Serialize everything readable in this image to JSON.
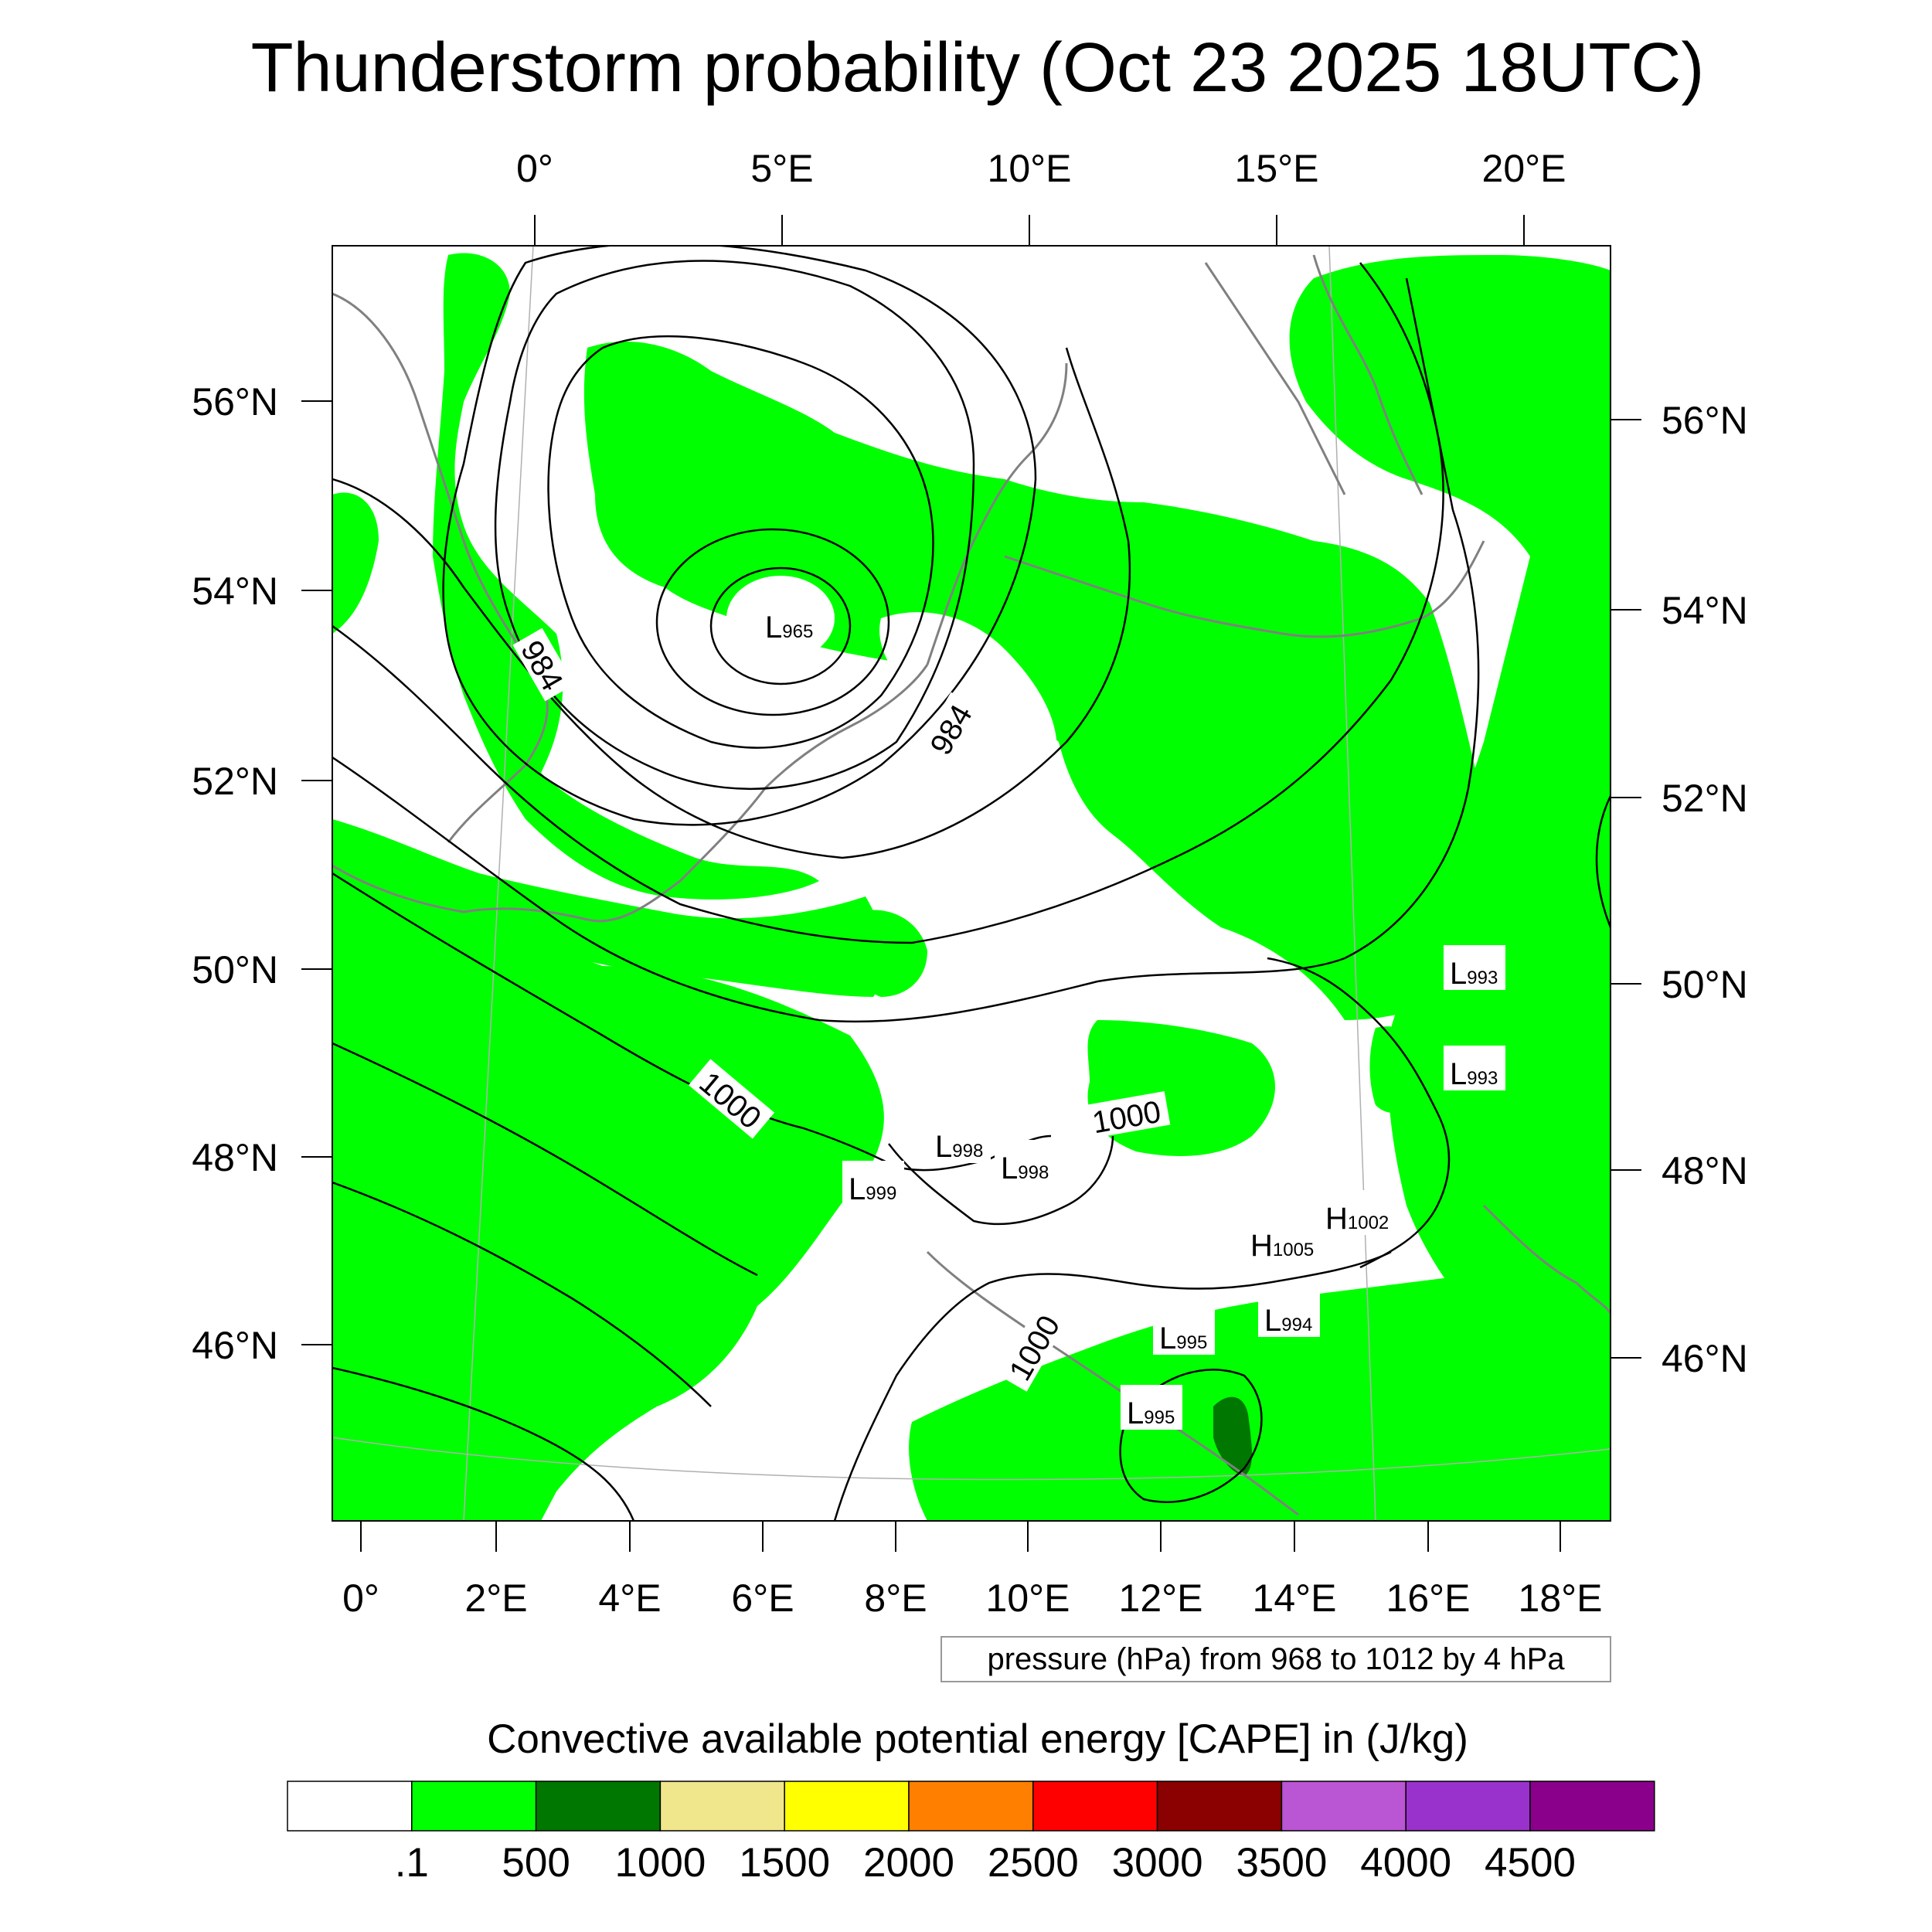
{
  "title": "Thunderstorm probability (Oct 23 2025 18UTC)",
  "top_axis": [
    "0°",
    "5°E",
    "10°E",
    "15°E",
    "20°E"
  ],
  "bottom_axis": [
    "0°",
    "2°E",
    "4°E",
    "6°E",
    "8°E",
    "10°E",
    "12°E",
    "14°E",
    "16°E",
    "18°E"
  ],
  "left_axis": [
    "56°N",
    "54°N",
    "52°N",
    "50°N",
    "48°N",
    "46°N"
  ],
  "right_axis": [
    "56°N",
    "54°N",
    "52°N",
    "50°N",
    "48°N",
    "46°N"
  ],
  "contour_labels": [
    "984",
    "984",
    "1000",
    "1000",
    "1000"
  ],
  "pressure_centers": [
    {
      "type": "L",
      "value": "965"
    },
    {
      "type": "L",
      "value": "999"
    },
    {
      "type": "L",
      "value": "998"
    },
    {
      "type": "L",
      "value": "998"
    },
    {
      "type": "H",
      "value": "1005"
    },
    {
      "type": "H",
      "value": "1002"
    },
    {
      "type": "L",
      "value": "994"
    },
    {
      "type": "L",
      "value": "995"
    },
    {
      "type": "L",
      "value": "995"
    },
    {
      "type": "L",
      "value": "993"
    },
    {
      "type": "L",
      "value": "993"
    }
  ],
  "contour_info": "pressure (hPa) from 968 to 1012 by 4 hPa",
  "colorbar": {
    "title": "Convective available potential energy [CAPE] in (J/kg)",
    "labels": [
      ".1",
      "500",
      "1000",
      "1500",
      "2000",
      "2500",
      "3000",
      "3500",
      "4000",
      "4500"
    ],
    "colors": [
      "#ffffff",
      "#00ff00",
      "#007700",
      "#f0e68c",
      "#ffff00",
      "#ff8000",
      "#ff0000",
      "#8b0000",
      "#ba55d3",
      "#9932cc",
      "#8b008b"
    ]
  },
  "colors": {
    "cape_green": "#00ff00",
    "cape_dark_green": "#007700",
    "coastline": "#808080",
    "isobar": "#000000"
  }
}
